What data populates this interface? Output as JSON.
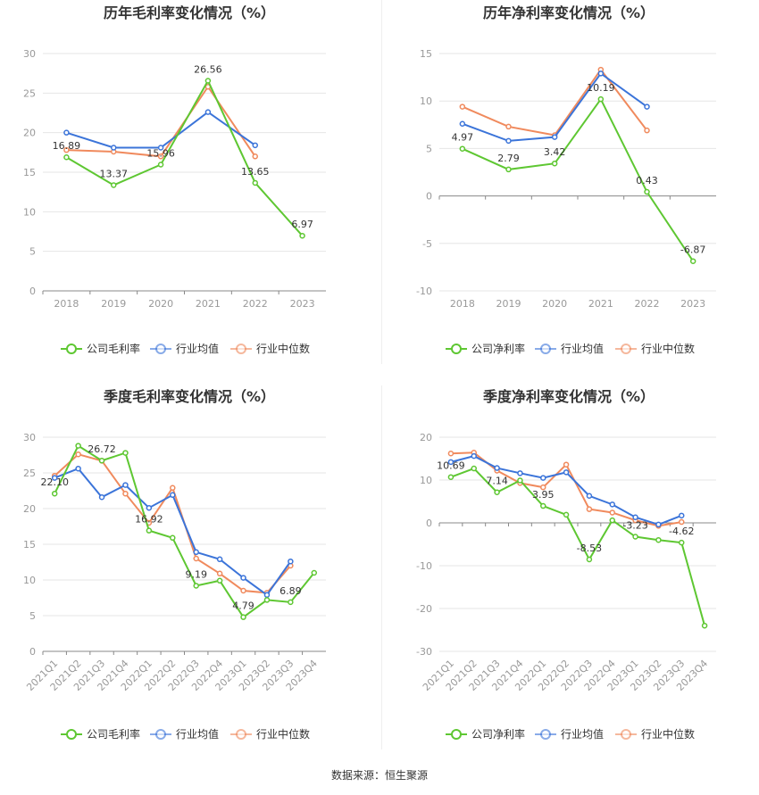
{
  "source_text": "数据来源：恒生聚源",
  "colors": {
    "company": "#5ec732",
    "avg": "#3b74d9",
    "median": "#f08a5d"
  },
  "chart_data": [
    {
      "type": "line",
      "title": "历年毛利率变化情况（%）",
      "categories": [
        "2018",
        "2019",
        "2020",
        "2021",
        "2022",
        "2023"
      ],
      "ylim": [
        0,
        30
      ],
      "yticks": [
        0,
        5,
        10,
        15,
        20,
        25,
        30
      ],
      "grid": true,
      "legend_position": "bottom",
      "series": [
        {
          "name": "公司毛利率",
          "values": [
            16.89,
            13.37,
            15.96,
            26.56,
            13.65,
            6.97
          ],
          "labels": [
            "16.89",
            "13.37",
            "15.96",
            "26.56",
            "13.65",
            "6.97"
          ]
        },
        {
          "name": "行业均值",
          "values": [
            20.0,
            18.1,
            18.1,
            22.6,
            18.4,
            null
          ]
        },
        {
          "name": "行业中位数",
          "values": [
            17.8,
            17.6,
            17.0,
            25.8,
            17.0,
            null
          ]
        }
      ]
    },
    {
      "type": "line",
      "title": "历年净利率变化情况（%）",
      "categories": [
        "2018",
        "2019",
        "2020",
        "2021",
        "2022",
        "2023"
      ],
      "ylim": [
        -10,
        15
      ],
      "yticks": [
        -10,
        -5,
        0,
        5,
        10,
        15
      ],
      "grid": true,
      "legend_position": "bottom",
      "series": [
        {
          "name": "公司净利率",
          "values": [
            4.97,
            2.79,
            3.42,
            10.19,
            0.43,
            -6.87
          ],
          "labels": [
            "4.97",
            "2.79",
            "3.42",
            "10.19",
            "0.43",
            "-6.87"
          ]
        },
        {
          "name": "行业均值",
          "values": [
            7.6,
            5.8,
            6.2,
            12.9,
            9.4,
            null
          ]
        },
        {
          "name": "行业中位数",
          "values": [
            9.4,
            7.3,
            6.4,
            13.3,
            6.9,
            null
          ]
        }
      ]
    },
    {
      "type": "line",
      "title": "季度毛利率变化情况（%）",
      "categories": [
        "2021Q1",
        "2021Q2",
        "2021Q3",
        "2021Q4",
        "2022Q1",
        "2022Q2",
        "2022Q3",
        "2022Q4",
        "2023Q1",
        "2023Q2",
        "2023Q3",
        "2023Q4"
      ],
      "ylim": [
        0,
        30
      ],
      "yticks": [
        0,
        5,
        10,
        15,
        20,
        25,
        30
      ],
      "grid": true,
      "legend_position": "bottom",
      "series": [
        {
          "name": "公司毛利率",
          "values": [
            22.1,
            28.8,
            26.72,
            27.8,
            16.92,
            15.9,
            9.19,
            9.9,
            4.79,
            7.2,
            6.89,
            11.0
          ],
          "labels": [
            "22.10",
            null,
            "26.72",
            null,
            "16.92",
            null,
            "9.19",
            null,
            "4.79",
            null,
            "6.89",
            null
          ]
        },
        {
          "name": "行业均值",
          "values": [
            24.3,
            25.6,
            21.6,
            23.3,
            20.1,
            21.9,
            13.9,
            12.9,
            10.3,
            7.9,
            12.6,
            null
          ]
        },
        {
          "name": "行业中位数",
          "values": [
            24.6,
            27.6,
            26.7,
            22.1,
            18.0,
            22.9,
            13.0,
            10.9,
            8.5,
            8.2,
            12.0,
            null
          ]
        }
      ]
    },
    {
      "type": "line",
      "title": "季度净利率变化情况（%）",
      "categories": [
        "2021Q1",
        "2021Q2",
        "2021Q3",
        "2021Q4",
        "2022Q1",
        "2022Q2",
        "2022Q3",
        "2022Q4",
        "2023Q1",
        "2023Q2",
        "2023Q3",
        "2023Q4"
      ],
      "ylim": [
        -30,
        20
      ],
      "yticks": [
        -30,
        -20,
        -10,
        0,
        10,
        20
      ],
      "grid": true,
      "legend_position": "bottom",
      "series": [
        {
          "name": "公司净利率",
          "values": [
            10.69,
            12.7,
            7.14,
            9.9,
            3.95,
            1.9,
            -8.53,
            0.6,
            -3.23,
            -4.0,
            -4.62,
            -24.0
          ],
          "labels": [
            "10.69",
            null,
            "7.14",
            null,
            "3.95",
            null,
            "-8.53",
            null,
            "-3.23",
            null,
            "-4.62",
            null
          ]
        },
        {
          "name": "行业均值",
          "values": [
            14.2,
            15.6,
            12.8,
            11.6,
            10.5,
            11.8,
            6.3,
            4.3,
            1.3,
            -0.4,
            1.7,
            null
          ]
        },
        {
          "name": "行业中位数",
          "values": [
            16.2,
            16.4,
            12.2,
            9.3,
            8.3,
            13.6,
            3.2,
            2.4,
            0.6,
            -0.7,
            0.2,
            null
          ]
        }
      ]
    }
  ]
}
